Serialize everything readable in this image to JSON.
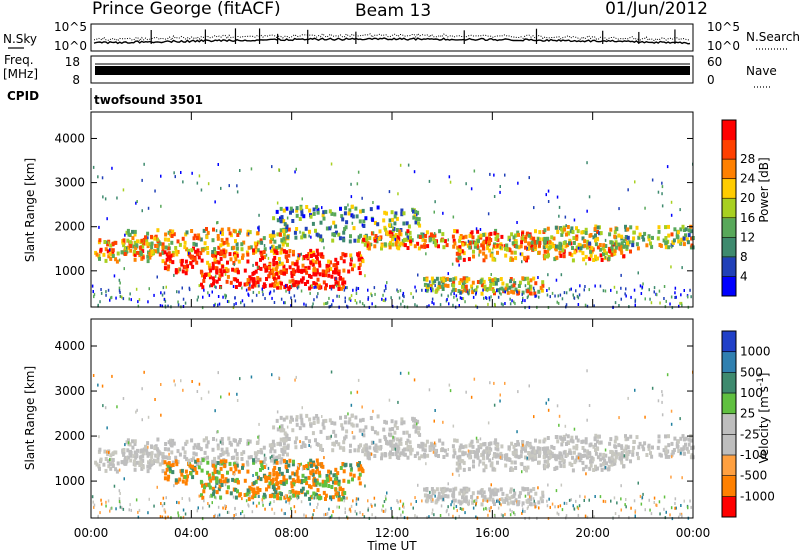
{
  "header": {
    "title": "Prince George (fitACF)",
    "beam": "Beam 13",
    "date": "01/Jun/2012"
  },
  "top_panels": {
    "nsky_label": "N.Sky",
    "nsky_ticks": [
      "10^5",
      "10^0"
    ],
    "nsearch_label": "N.Search",
    "nsearch_ticks": [
      "10^5",
      "10^0"
    ],
    "freq_label_1": "Freq.",
    "freq_label_2": "[MHz]",
    "freq_ticks": [
      "18",
      "8"
    ],
    "nave_label": "Nave",
    "nave_ticks": [
      "60",
      "0"
    ],
    "cpid_label": "CPID",
    "cpid_value": "twofsound 3501"
  },
  "colors": {
    "power_scale": [
      "#0000ff",
      "#2040b8",
      "#3e8a6e",
      "#58a85a",
      "#a8d020",
      "#ffcc00",
      "#ff8000",
      "#ff4000",
      "#ff0000"
    ],
    "velocity_scale": [
      "#2040c8",
      "#3080b0",
      "#3e8a6e",
      "#60c040",
      "#bebebe",
      "#bebebe",
      "#ffa040",
      "#ff8000",
      "#ff0000"
    ]
  },
  "chart_data": [
    {
      "type": "heatmap",
      "name": "power",
      "xlabel": "",
      "ylabel": "Slant Range [km]",
      "ylim": [
        180,
        4600
      ],
      "y_ticks": [
        "1000",
        "2000",
        "3000",
        "4000"
      ],
      "colorbar_label": "Power [dB]",
      "colorbar_ticks": [
        "4",
        "8",
        "12",
        "16",
        "20",
        "24",
        "28"
      ],
      "colorbar_range": [
        0,
        32
      ]
    },
    {
      "type": "heatmap",
      "name": "velocity",
      "xlabel": "Time UT",
      "ylabel": "Slant Range [km]",
      "ylim": [
        180,
        4600
      ],
      "y_ticks": [
        "1000",
        "2000",
        "3000",
        "4000"
      ],
      "x_ticks": [
        "00:00",
        "04:00",
        "08:00",
        "12:00",
        "16:00",
        "20:00",
        "00:00"
      ],
      "colorbar_label": "Velocity [m s-1]",
      "colorbar_ticks": [
        "1000",
        "500",
        "100",
        "25",
        "-25",
        "-100",
        "-500",
        "-1000"
      ]
    }
  ]
}
